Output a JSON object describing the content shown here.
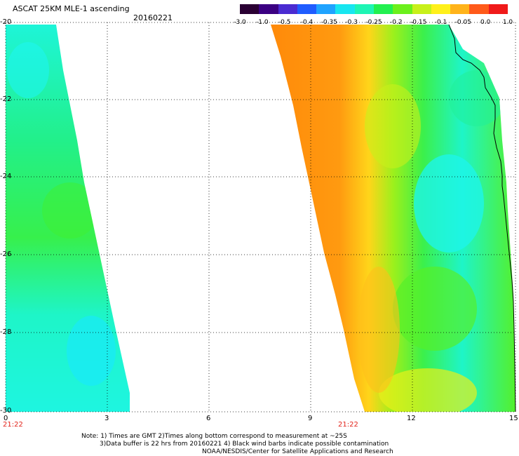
{
  "header": {
    "title": "ASCAT 25KM MLE-1 ascending",
    "date": "20160221"
  },
  "colorbar": {
    "labels": [
      "-3.0",
      "-1.0",
      "-0.5",
      "-0.4",
      "-0.35",
      "-0.3",
      "-0.25",
      "-0.2",
      "-0.15",
      "-0.1",
      "-0.05",
      "0.0",
      "1.0"
    ],
    "colors": [
      "#2a0033",
      "#3b0082",
      "#4a2bd1",
      "#1f5cff",
      "#1fa3ff",
      "#17e6f0",
      "#1ef5b4",
      "#22f050",
      "#6cf01c",
      "#c8f01a",
      "#fff01a",
      "#ffb31a",
      "#ff5a1a",
      "#f01a1a"
    ]
  },
  "map": {
    "x_axis": {
      "ticks": [
        "0",
        "3",
        "6",
        "9",
        "12",
        "15"
      ]
    },
    "y_axis": {
      "ticks": [
        "-20",
        "-22",
        "-24",
        "-26",
        "-28",
        "-30"
      ]
    },
    "time_labels": [
      "21:22",
      "21:22"
    ],
    "colors": {
      "high": "#ff8c0a",
      "mid": "#ffe01a",
      "low": "#22f050",
      "lowest": "#1ef5d8",
      "coast": "#000000"
    }
  },
  "notes": {
    "line1": "Note: 1) Times are GMT 2)Times along bottom correspond to measurement at ~25S",
    "line2": "3)Data buffer is 22 hrs from 20160221 4) Black wind barbs indicate possible contamination",
    "line3": "NOAA/NESDIS/Center for Satellite Applications and Research"
  }
}
